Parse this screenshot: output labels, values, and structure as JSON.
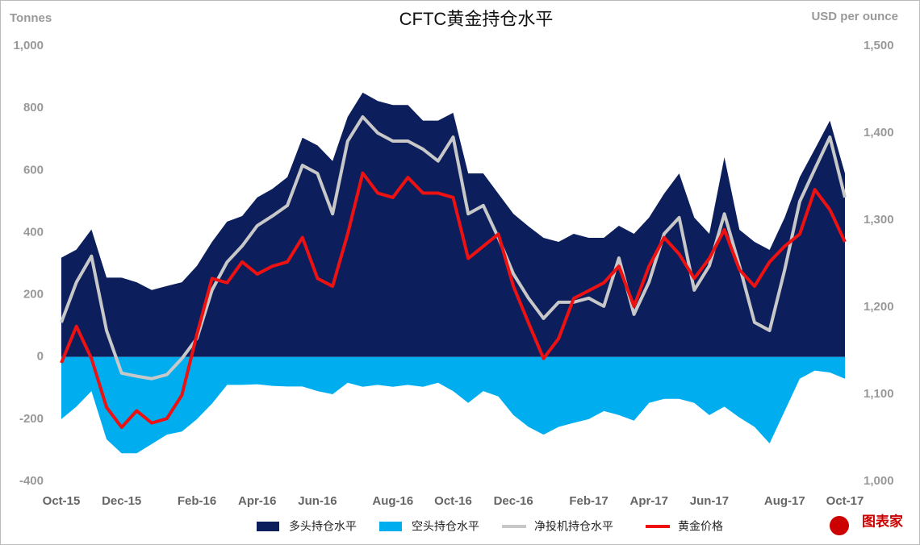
{
  "chart_data": {
    "type": "combo",
    "title": "CFTC黄金持仓水平",
    "y_label": "Tonnes",
    "y2_label": "USD per ounce",
    "brand": "图表家",
    "categories": [
      "Oct-15",
      null,
      null,
      null,
      "Dec-15",
      null,
      null,
      null,
      null,
      "Feb-16",
      null,
      null,
      null,
      "Apr-16",
      null,
      null,
      null,
      "Jun-16",
      null,
      null,
      null,
      null,
      "Aug-16",
      null,
      null,
      null,
      "Oct-16",
      null,
      null,
      null,
      "Dec-16",
      null,
      null,
      null,
      null,
      "Feb-17",
      null,
      null,
      null,
      "Apr-17",
      null,
      null,
      null,
      "Jun-17",
      null,
      null,
      null,
      null,
      "Aug-17",
      null,
      null,
      null,
      "Oct-17"
    ],
    "ylim": [
      -400,
      1000
    ],
    "yticks": [
      -400,
      -200,
      0,
      200,
      400,
      600,
      800,
      {
        "value": 1000,
        "label": "1,000"
      }
    ],
    "y2lim": [
      1000,
      1500
    ],
    "y2ticks": [
      {
        "value": 1000,
        "label": "1,000"
      },
      {
        "value": 1100,
        "label": "1,100"
      },
      {
        "value": 1200,
        "label": "1,200"
      },
      {
        "value": 1300,
        "label": "1,300"
      },
      {
        "value": 1400,
        "label": "1,400"
      },
      {
        "value": 1500,
        "label": "1,500"
      }
    ],
    "series": [
      {
        "name": "多头持仓水平",
        "kind": "area",
        "color": "#0c1f5c",
        "values": [
          319,
          345,
          410,
          255,
          255,
          240,
          215,
          228,
          240,
          293,
          370,
          435,
          453,
          513,
          540,
          578,
          705,
          680,
          630,
          772,
          850,
          823,
          810,
          810,
          760,
          760,
          785,
          590,
          590,
          525,
          460,
          420,
          383,
          370,
          396,
          383,
          383,
          422,
          396,
          448,
          525,
          590,
          448,
          396,
          642,
          409,
          370,
          344,
          448,
          578,
          668,
          760,
          590
        ]
      },
      {
        "name": "空头持仓水平",
        "kind": "area",
        "color": "#00aeef",
        "values": [
          -200,
          -160,
          -110,
          -265,
          -310,
          -310,
          -280,
          -250,
          -240,
          -200,
          -150,
          -90,
          -90,
          -88,
          -93,
          -95,
          -95,
          -110,
          -120,
          -83,
          -96,
          -90,
          -96,
          -90,
          -96,
          -83,
          -110,
          -148,
          -110,
          -127,
          -187,
          -225,
          -250,
          -225,
          -212,
          -200,
          -174,
          -187,
          -205,
          -148,
          -135,
          -135,
          -148,
          -187,
          -160,
          -195,
          -225,
          -278,
          -174,
          -70,
          -44,
          -50,
          -70
        ]
      },
      {
        "name": "净投机持仓水平",
        "kind": "line",
        "color": "#c8c8c8",
        "values": [
          111,
          240,
          324,
          85,
          -52,
          -62,
          -70,
          -57,
          -5,
          60,
          215,
          305,
          357,
          422,
          453,
          487,
          616,
          590,
          460,
          694,
          772,
          720,
          694,
          694,
          668,
          630,
          707,
          460,
          487,
          383,
          267,
          189,
          124,
          176,
          176,
          189,
          163,
          318,
          137,
          241,
          396,
          448,
          215,
          293,
          460,
          293,
          111,
          85,
          280,
          500,
          604,
          707,
          513
        ]
      },
      {
        "name": "黄金价格",
        "kind": "line",
        "axis": "y2",
        "color": "#ee1111",
        "values": [
          1136,
          1178,
          1141,
          1085,
          1062,
          1081,
          1067,
          1072,
          1099,
          1169,
          1233,
          1228,
          1252,
          1238,
          1247,
          1252,
          1280,
          1233,
          1224,
          1284,
          1354,
          1331,
          1326,
          1349,
          1331,
          1331,
          1326,
          1256,
          1270,
          1284,
          1224,
          1182,
          1141,
          1164,
          1210,
          1219,
          1228,
          1247,
          1201,
          1247,
          1280,
          1261,
          1233,
          1256,
          1289,
          1243,
          1224,
          1252,
          1270,
          1284,
          1335,
          1312,
          1275
        ]
      }
    ]
  }
}
